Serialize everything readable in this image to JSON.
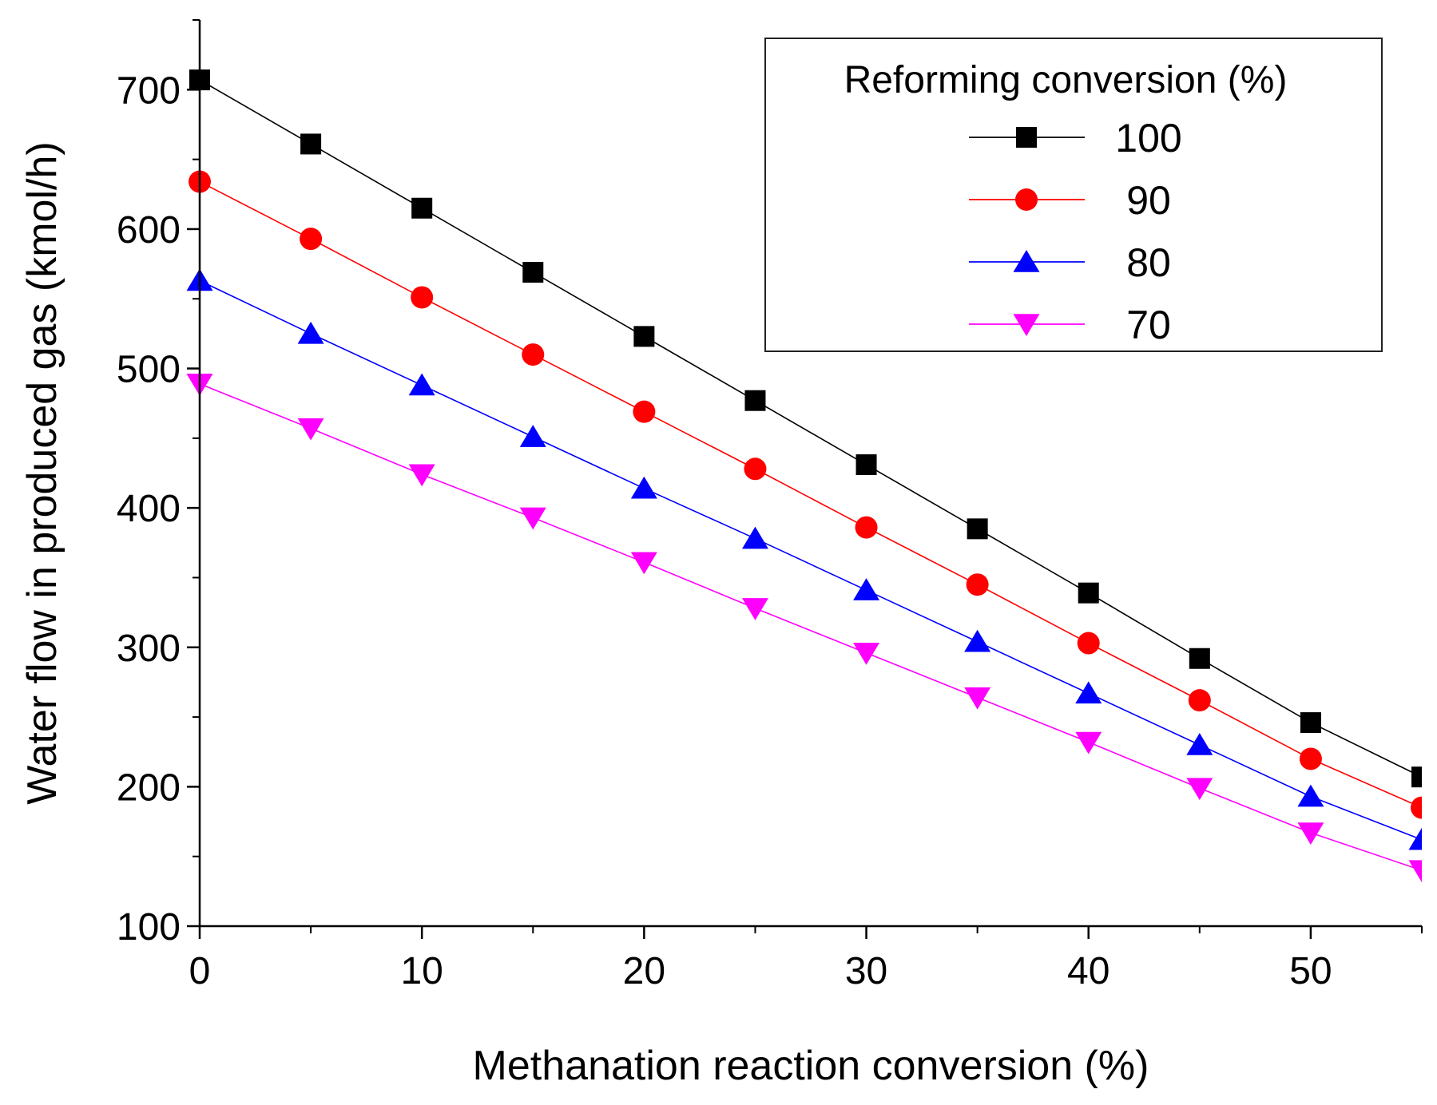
{
  "chart_data": {
    "type": "line",
    "title": "",
    "xlabel": "Methanation reaction conversion (%)",
    "ylabel": "Water flow in produced gas (kmol/h)",
    "xlim": [
      0,
      55
    ],
    "ylim": [
      100,
      750
    ],
    "xticks": [
      0,
      10,
      20,
      30,
      40,
      50
    ],
    "yticks": [
      100,
      200,
      300,
      400,
      500,
      600,
      700
    ],
    "x": [
      0,
      5,
      10,
      15,
      20,
      25,
      30,
      35,
      40,
      45,
      50,
      55
    ],
    "legend": {
      "title": "Reforming conversion (%)",
      "position": "top-right"
    },
    "series": [
      {
        "name": "100",
        "color": "#000000",
        "marker": "square",
        "values": [
          707,
          661,
          615,
          569,
          523,
          477,
          431,
          385,
          339,
          292,
          246,
          207
        ]
      },
      {
        "name": "90",
        "color": "#ff0000",
        "marker": "circle",
        "values": [
          634,
          593,
          551,
          510,
          469,
          428,
          386,
          345,
          303,
          262,
          220,
          185
        ]
      },
      {
        "name": "80",
        "color": "#0000ff",
        "marker": "triangle-up",
        "values": [
          563,
          525,
          488,
          451,
          414,
          378,
          341,
          304,
          267,
          230,
          193,
          162
        ]
      },
      {
        "name": "70",
        "color": "#ff00ff",
        "marker": "triangle-down",
        "values": [
          489,
          457,
          424,
          393,
          361,
          328,
          296,
          264,
          232,
          199,
          167,
          140
        ]
      }
    ]
  }
}
